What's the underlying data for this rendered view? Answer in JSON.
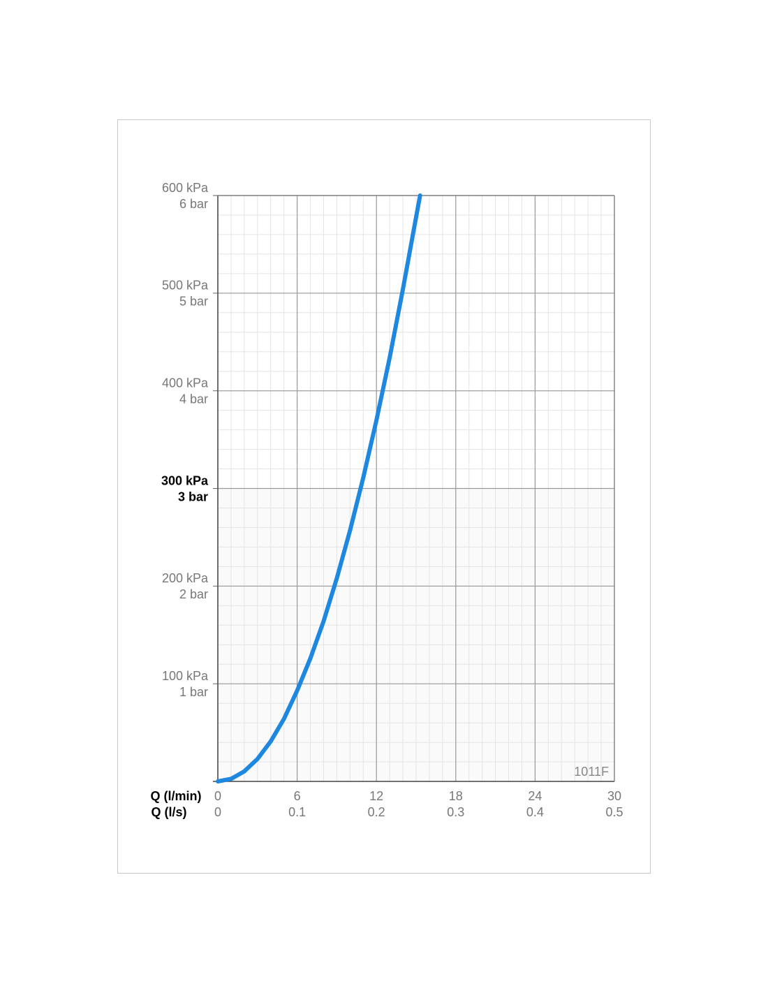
{
  "chart_data": {
    "type": "line",
    "xlabel": "Q (l/min)",
    "x2label": "Q (l/s)",
    "annotation": "1011F",
    "x": [
      0,
      1,
      2,
      3,
      4,
      5,
      6,
      7,
      8,
      9,
      10,
      11,
      12,
      13,
      14,
      15,
      15.3
    ],
    "series": [
      {
        "color": "#1e88e0",
        "values": [
          0,
          2.6,
          10.3,
          23,
          41,
          64,
          93,
          126,
          164,
          208,
          257,
          311,
          370,
          434,
          504,
          578,
          600
        ]
      }
    ],
    "xlim": [
      0,
      30
    ],
    "xticks": [
      0,
      6,
      12,
      18,
      24,
      30
    ],
    "x2lim": [
      0,
      0.5
    ],
    "x2ticks": [
      0,
      0.1,
      0.2,
      0.3,
      0.4,
      0.5
    ],
    "ylim": [
      0,
      600
    ],
    "yticks": [
      {
        "value": 100,
        "label": "100 kPa"
      },
      {
        "value": 200,
        "label": "200 kPa"
      },
      {
        "value": 300,
        "label": "300 kPa"
      },
      {
        "value": 400,
        "label": "400 kPa"
      },
      {
        "value": 500,
        "label": "500 kPa"
      },
      {
        "value": 600,
        "label": "600 kPa"
      }
    ],
    "y2lim": [
      0,
      6
    ],
    "y2ticks": [
      {
        "value": 1,
        "label": "1 bar"
      },
      {
        "value": 2,
        "label": "2 bar"
      },
      {
        "value": 3,
        "label": "3 bar"
      },
      {
        "value": 4,
        "label": "4 bar"
      },
      {
        "value": 5,
        "label": "5 bar"
      },
      {
        "value": 6,
        "label": "6 bar"
      }
    ],
    "emphasized_ytick": 300,
    "grid": true,
    "minor_grid": {
      "x": 1,
      "y": 20
    }
  }
}
